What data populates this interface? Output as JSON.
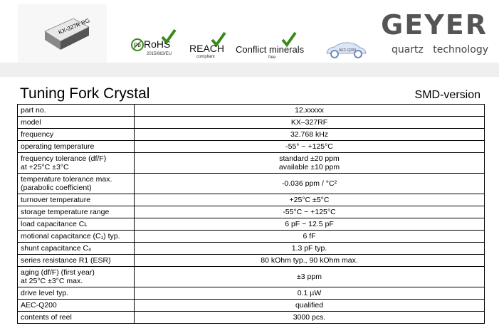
{
  "header": {
    "product_image_label": "KX-327R RG",
    "certifications": [
      {
        "label": "RoHS",
        "sub": "2015/863/EU",
        "icon": "pb-free-icon"
      },
      {
        "label": "REACH",
        "sub": "compliant"
      },
      {
        "label": "Conflict minerals",
        "sub": "free"
      },
      {
        "label": "AEC-Q200",
        "icon": "car-icon"
      }
    ],
    "logo": {
      "brand": "GEYER",
      "left": "quartz",
      "right": "technology"
    },
    "accent_check_color": "#3a8a1a"
  },
  "title": "Tuning Fork Crystal",
  "version": "SMD-version",
  "specs": [
    {
      "label": "part no.",
      "value": "12.xxxxx"
    },
    {
      "label": "model",
      "value": "KX–327RF"
    },
    {
      "label": "frequency",
      "value": "32.768 kHz"
    },
    {
      "label": "operating temperature",
      "value": "-55° ~ +125°C"
    },
    {
      "label": "frequency tolerance (df/F)",
      "label2": "at +25°C ±3°C",
      "value": "standard ±20 ppm",
      "value2": "available ±10 ppm"
    },
    {
      "label": "temperature tolerance max.",
      "label2": "(parabolic coefficient)",
      "value": "-0.036 ppm / °C²"
    },
    {
      "label": "turnover temperature",
      "value": "+25°C ±5°C"
    },
    {
      "label": "storage temperature range",
      "value": "-55°C ~ +125°C"
    },
    {
      "label": "load capacitance Cʟ",
      "value": "6 pF ~ 12.5 pF"
    },
    {
      "label": "motional capacitance (C₁) typ.",
      "value": "6 fF"
    },
    {
      "label": "shunt capacitance C₀",
      "value": "1.3 pF typ."
    },
    {
      "label": "series resistance R1 (ESR)",
      "value": "80 kOhm typ., 90 kOhm max."
    },
    {
      "label": "aging (df/F) (first year)",
      "label2": "at 25°C ±3°C max.",
      "value": "±3 ppm"
    },
    {
      "label": "drive level typ.",
      "value": "0.1 µW"
    },
    {
      "label": "AEC-Q200",
      "value": "qualified"
    },
    {
      "label": "contents of reel",
      "value": "3000 pcs."
    }
  ]
}
